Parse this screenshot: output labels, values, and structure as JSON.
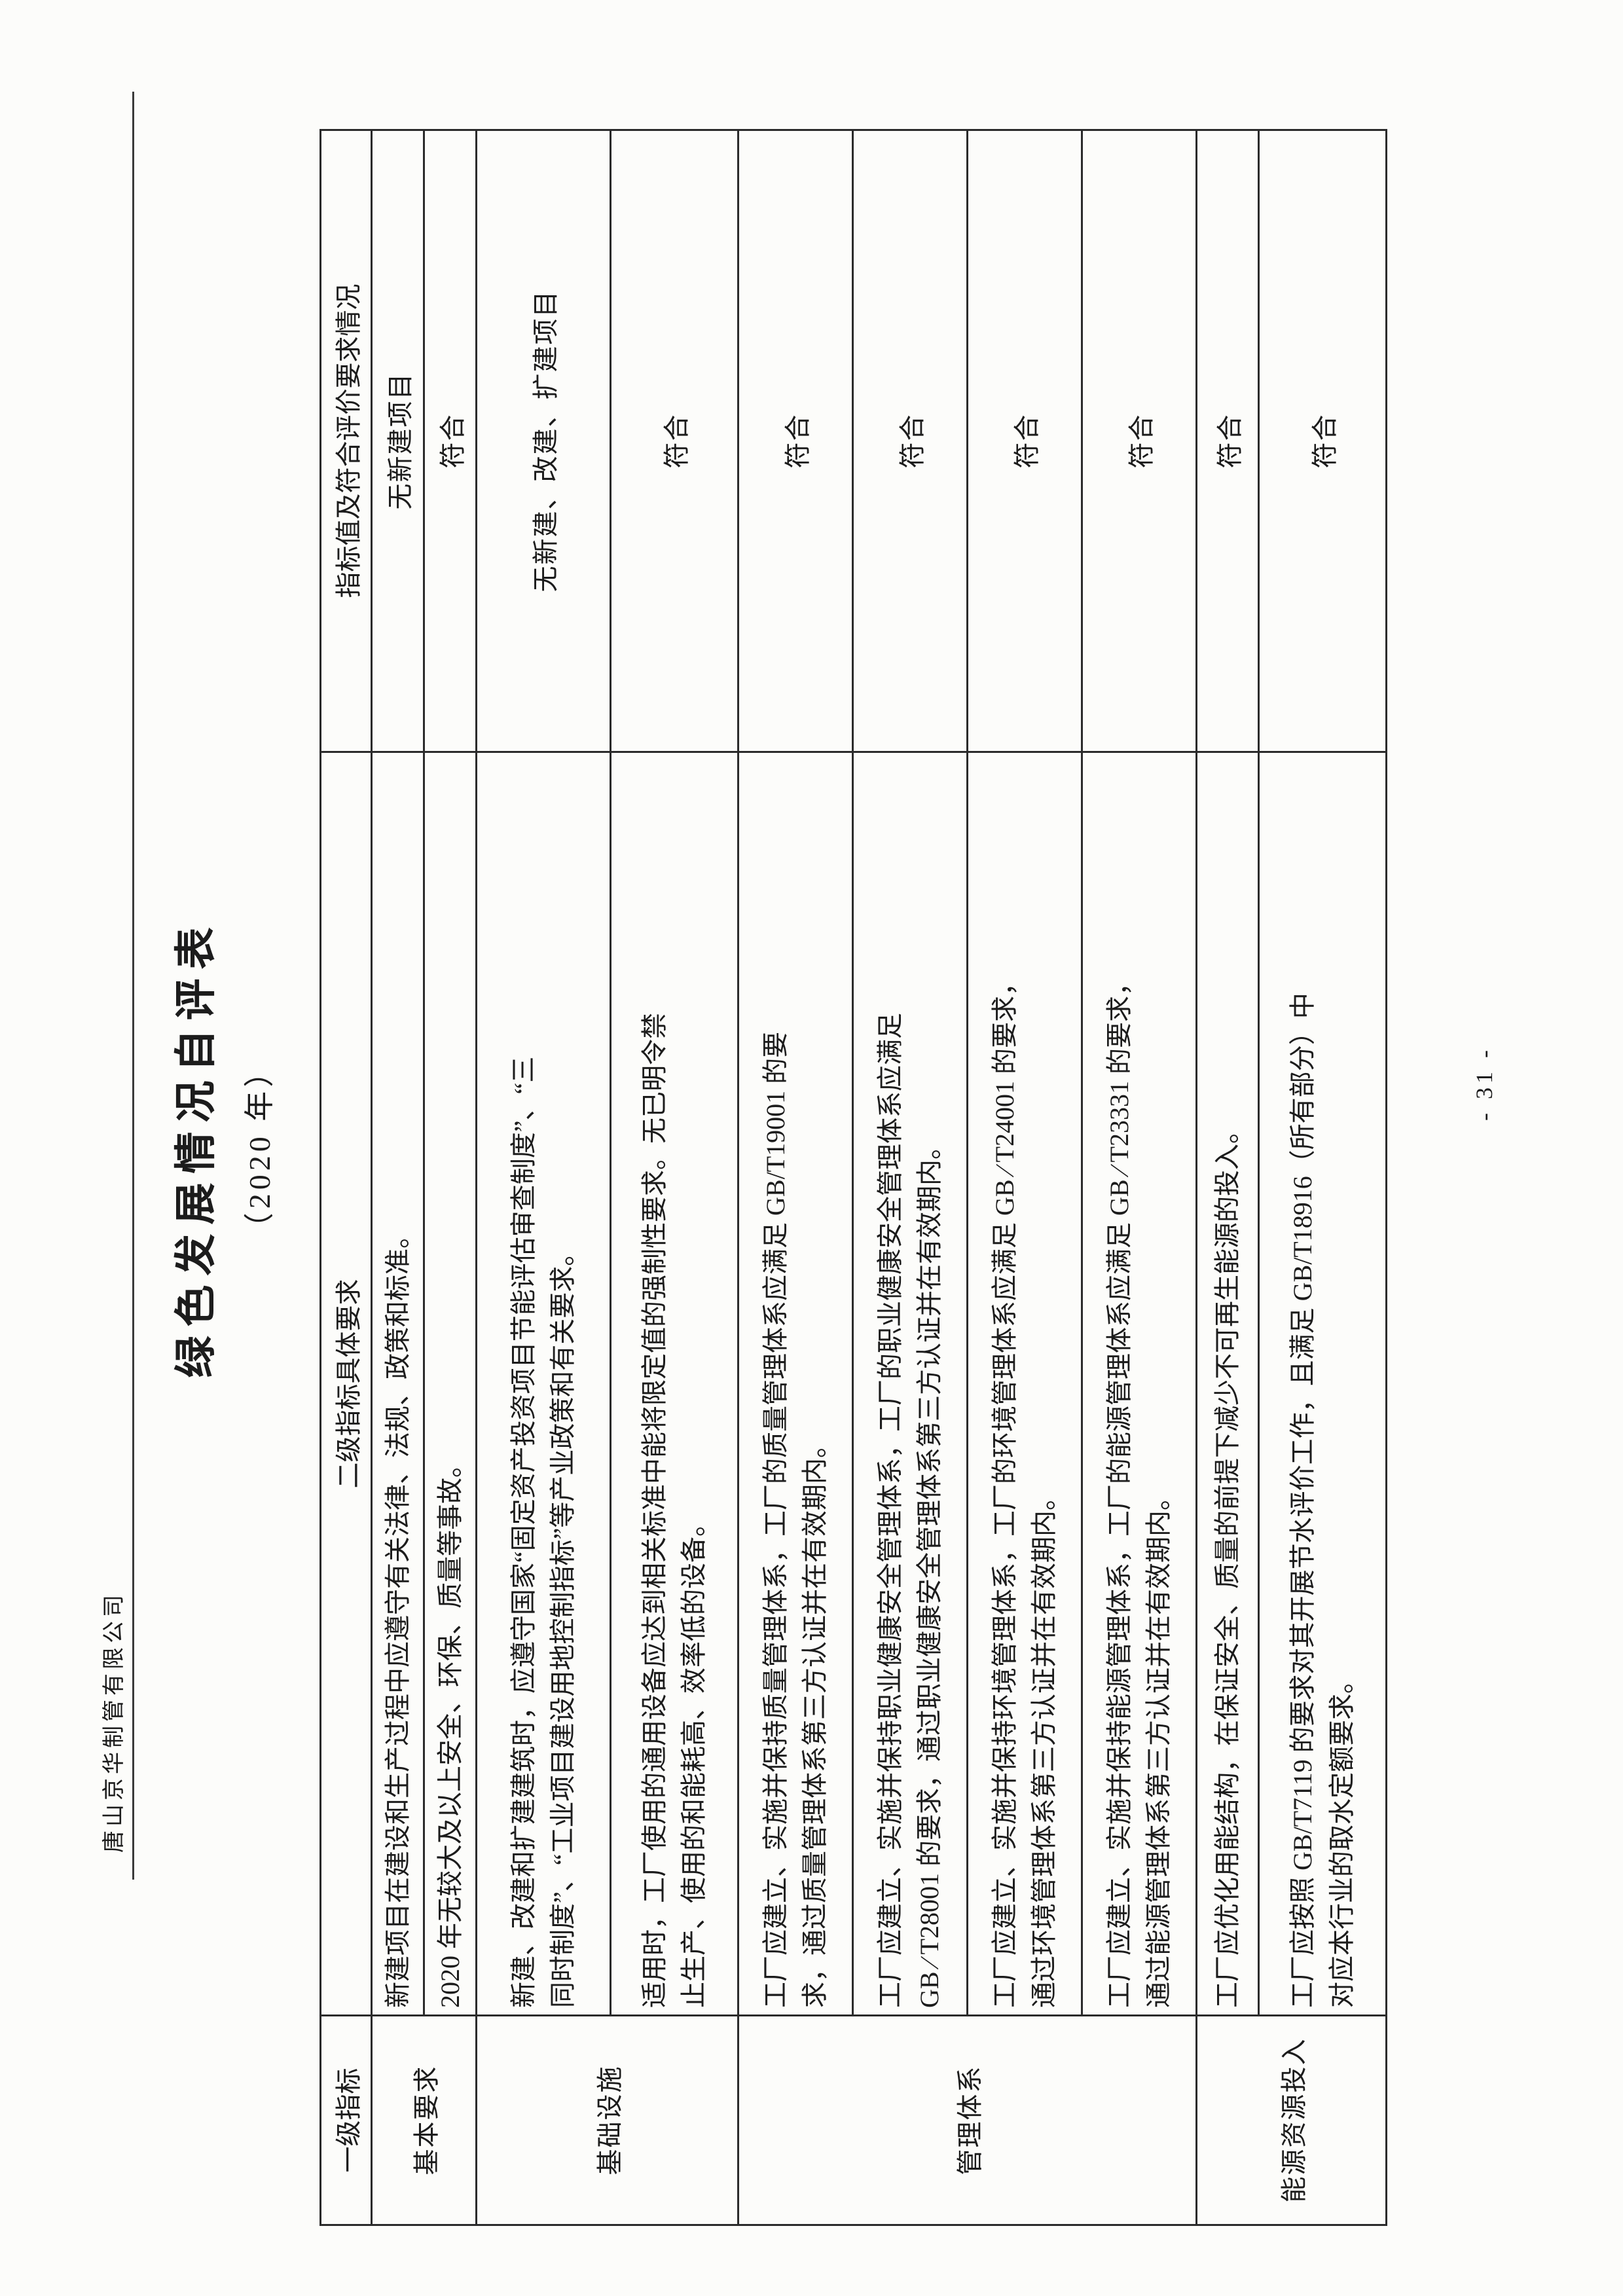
{
  "header": {
    "company": "唐山京华制管有限公司"
  },
  "title": {
    "main": "绿色发展情况自评表",
    "sub": "（2020 年）"
  },
  "table": {
    "col_headers": {
      "level1": "一级指标",
      "level2": "二级指标具体要求",
      "status": "指标值及符合评价要求情况"
    },
    "rows": [
      {
        "group": "基本要求",
        "req": "新建项目在建设和生产过程中应遵守有关法律、法规、政策和标准。",
        "status": "无新建项目"
      },
      {
        "req": "2020 年无较大及以上安全、环保、质量等事故。",
        "status": "符合"
      },
      {
        "group": "基础设施",
        "req": "新建、改建和扩建建筑时，应遵守国家“固定资产投资项目节能评估审查制度”、“三\n同时制度”、“工业项目建设用地控制指标”等产业政策和有关要求。",
        "status": "无新建、改建、扩建项目"
      },
      {
        "req": "适用时，工厂使用的通用设备应达到相关标准中能将限定值的强制性要求。无已明令禁\n止生产、使用的和能耗高、效率低的设备。",
        "status": "符合"
      },
      {
        "group": "管理体系",
        "req": "工厂应建立、实施并保持质量管理体系，工厂的质量管理体系应满足 GB/T19001 的要\n求，通过质量管理体系第三方认证并在有效期内。",
        "status": "符合"
      },
      {
        "req": "工厂应建立、实施并保持职业健康安全管理体系，工厂的职业健康安全管理体系应满足\nGB ∕ T28001 的要求，通过职业健康安全管理体系第三方认证并在有效期内。",
        "status": "符合"
      },
      {
        "req": "工厂应建立、实施并保持环境管理体系，工厂的环境管理体系应满足 GB ∕ T24001 的要求，\n通过环境管理体系第三方认证并在有效期内。",
        "status": "符合"
      },
      {
        "req": "工厂应建立、实施并保持能源管理体系，工厂的能源管理体系应满足 GB ∕ T23331 的要求，\n通过能源管理体系第三方认证并在有效期内。",
        "status": "符合"
      },
      {
        "group": "能源资源投入",
        "req": "工厂应优化用能结构，在保证安全、质量的前提下减少不可再生能源的投入。",
        "status": "符合"
      },
      {
        "req": "工厂应按照 GB/T7119 的要求对其开展节水评价工作，且满足 GB/T18916（所有部分）中\n对应本行业的取水定额要求。",
        "status": "符合"
      }
    ]
  },
  "footer": {
    "page_number": "- 31 -"
  }
}
